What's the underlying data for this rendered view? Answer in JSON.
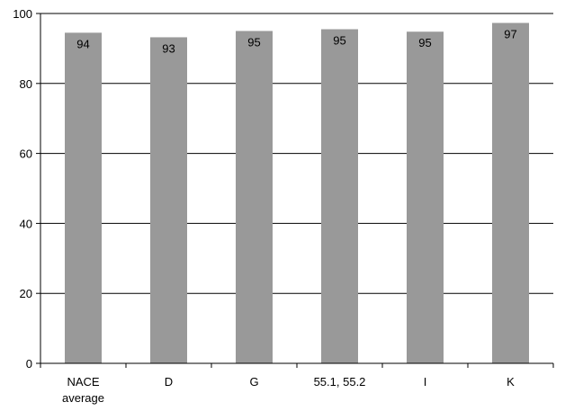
{
  "chart_data": {
    "type": "bar",
    "categories": [
      [
        "NACE",
        "average"
      ],
      [
        "D"
      ],
      [
        "G"
      ],
      [
        "55.1, 55.2"
      ],
      [
        "I"
      ],
      [
        "K"
      ]
    ],
    "values": [
      94.5,
      93.2,
      95.0,
      95.5,
      94.8,
      97.3
    ],
    "data_labels": [
      "94",
      "93",
      "95",
      "95",
      "95",
      "97"
    ],
    "y_ticks": [
      "0",
      "20",
      "40",
      "60",
      "80",
      "100"
    ],
    "ylim": [
      0,
      100
    ],
    "title": "",
    "xlabel": "",
    "ylabel": "",
    "grid": true,
    "bar_color": "#999999",
    "grid_color": "#000000"
  }
}
